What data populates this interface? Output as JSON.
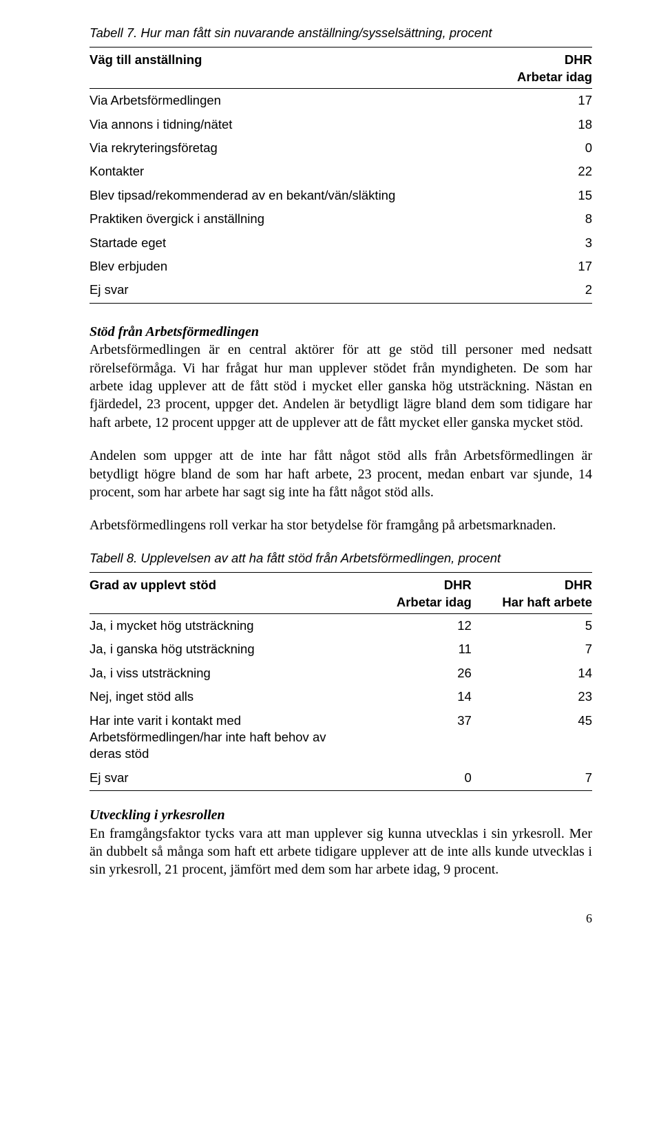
{
  "table7": {
    "title": "Tabell 7. Hur man fått sin nuvarande anställning/sysselsättning, procent",
    "header_label": "Väg till anställning",
    "header_col": "DHR",
    "header_col_sub": "Arbetar idag",
    "rows": [
      {
        "label": "Via Arbetsförmedlingen",
        "value": "17"
      },
      {
        "label": "Via annons i tidning/nätet",
        "value": "18"
      },
      {
        "label": "Via rekryteringsföretag",
        "value": "0"
      },
      {
        "label": "Kontakter",
        "value": "22"
      },
      {
        "label": "Blev tipsad/rekommenderad av en bekant/vän/släkting",
        "value": "15"
      },
      {
        "label": "Praktiken övergick i anställning",
        "value": "8"
      },
      {
        "label": "Startade eget",
        "value": "3"
      },
      {
        "label": "Blev erbjuden",
        "value": "17"
      },
      {
        "label": "Ej svar",
        "value": "2"
      }
    ]
  },
  "section1": {
    "heading": "Stöd från Arbetsförmedlingen",
    "p1": "Arbetsförmedlingen är en central aktörer för att ge stöd till personer med nedsatt rörelseförmåga. Vi har frågat hur man upplever stödet från myndigheten. De som har arbete idag upplever att de fått stöd i mycket eller ganska hög utsträckning. Nästan en fjärdedel, 23 procent, uppger det. Andelen är betydligt lägre bland dem som tidigare har haft arbete, 12 procent uppger att de upplever att de fått mycket eller ganska mycket stöd.",
    "p2": "Andelen som uppger att de inte har fått något stöd alls från Arbetsförmedlingen är betydligt högre bland de som har haft arbete, 23 procent, medan enbart var sjunde, 14 procent, som har arbete har sagt sig inte ha fått något stöd alls.",
    "p3": "Arbetsförmedlingens roll verkar ha stor betydelse för framgång på arbetsmarknaden."
  },
  "table8": {
    "title": "Tabell 8. Upplevelsen av att ha fått stöd från Arbetsförmedlingen, procent",
    "header_label": "Grad av upplevt stöd",
    "header_col1": "DHR",
    "header_col1_sub": "Arbetar idag",
    "header_col2": "DHR",
    "header_col2_sub": "Har haft arbete",
    "rows": [
      {
        "label": "Ja, i mycket hög utsträckning",
        "v1": "12",
        "v2": "5"
      },
      {
        "label": "Ja, i ganska hög utsträckning",
        "v1": "11",
        "v2": "7"
      },
      {
        "label": "Ja, i viss utsträckning",
        "v1": "26",
        "v2": "14"
      },
      {
        "label": "Nej, inget stöd alls",
        "v1": "14",
        "v2": "23"
      },
      {
        "label": "Har inte varit i kontakt med Arbetsförmedlingen/har inte haft behov av deras stöd",
        "v1": "37",
        "v2": "45"
      },
      {
        "label": "Ej svar",
        "v1": "0",
        "v2": "7"
      }
    ]
  },
  "section2": {
    "heading": "Utveckling i yrkesrollen",
    "p1": "En framgångsfaktor tycks vara att man upplever sig kunna utvecklas i sin yrkesroll. Mer än dubbelt så många som haft ett arbete tidigare upplever att de inte alls kunde utvecklas i sin yrkesroll, 21 procent, jämfört med dem som har arbete idag, 9 procent."
  },
  "page_number": "6"
}
